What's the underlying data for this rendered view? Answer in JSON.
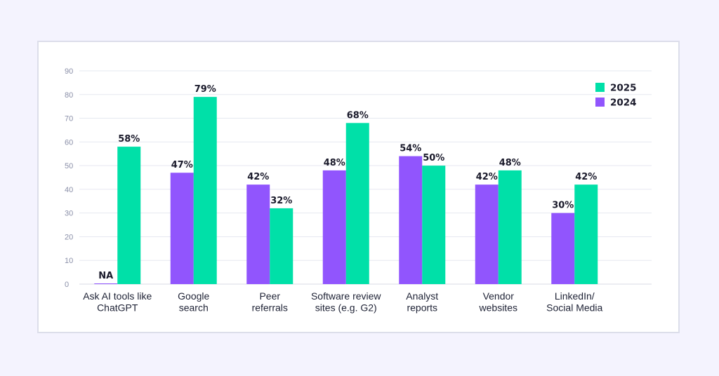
{
  "chart_data": {
    "type": "bar",
    "categories": [
      [
        "Ask AI tools like",
        "ChatGPT"
      ],
      [
        "Google",
        "search"
      ],
      [
        "Peer",
        "referrals"
      ],
      [
        "Software review",
        "sites (e.g. G2)"
      ],
      [
        "Analyst",
        "reports"
      ],
      [
        "Vendor",
        "websites"
      ],
      [
        "LinkedIn/",
        "Social Media"
      ]
    ],
    "series": [
      {
        "name": "2024",
        "color": "#9155fd",
        "values": [
          0,
          47,
          42,
          48,
          54,
          42,
          30
        ],
        "labels": [
          "NA",
          "47%",
          "42%",
          "48%",
          "54%",
          "42%",
          "30%"
        ]
      },
      {
        "name": "2025",
        "color": "#00e0a8",
        "values": [
          58,
          79,
          32,
          68,
          50,
          48,
          42
        ],
        "labels": [
          "58%",
          "79%",
          "32%",
          "68%",
          "50%",
          "48%",
          "42%"
        ]
      }
    ],
    "legend_order": [
      "2025",
      "2024"
    ],
    "yticks": [
      "0",
      "10",
      "20",
      "30",
      "40",
      "50",
      "60",
      "70",
      "80",
      "90"
    ],
    "ylim": [
      0,
      90
    ],
    "grid": true,
    "legend_position": "top-right",
    "xlabel": "",
    "ylabel": "",
    "title": ""
  }
}
